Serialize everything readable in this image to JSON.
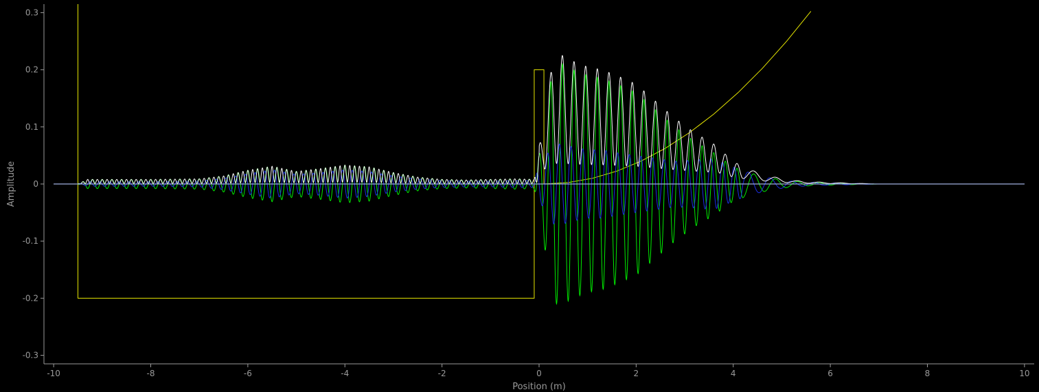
{
  "chart_data": {
    "type": "line",
    "title": "",
    "xlabel": "Position (m)",
    "ylabel": "Amplitude",
    "xlim": [
      -10.2,
      10.2
    ],
    "ylim": [
      -0.315,
      0.315
    ],
    "xticks": [
      -10,
      -8,
      -6,
      -4,
      -2,
      0,
      2,
      4,
      6,
      8,
      10
    ],
    "yticks": [
      -0.3,
      -0.2,
      -0.1,
      0,
      0.1,
      0.2,
      0.3
    ],
    "yticklabels": [
      "-0.3",
      "-0.2",
      "-0.1",
      "0",
      "0.1",
      "0.2",
      "0.3"
    ],
    "grid": false,
    "background": "#000000",
    "axis_color": "#9a9a9a",
    "series": [
      {
        "role": "potential",
        "color": "#e6e600",
        "segments": [
          {
            "x": [
              -9.5,
              -9.5,
              -9.5,
              -0.1,
              -0.1,
              0.1,
              0.1
            ],
            "y": [
              0.315,
              -0.2,
              -0.2,
              -0.2,
              0.2,
              0.2,
              0.0
            ]
          },
          {
            "x": [
              0.1,
              0.6,
              1.1,
              1.6,
              2.1,
              2.6,
              3.1,
              3.6,
              4.1,
              4.6,
              5.1,
              5.6
            ],
            "y": [
              0.0,
              0.0025,
              0.01,
              0.0225,
              0.04,
              0.0625,
              0.09,
              0.1225,
              0.16,
              0.2025,
              0.25,
              0.3025
            ]
          }
        ]
      },
      {
        "role": "real-part",
        "color": "#00ee00",
        "envelope": {
          "x": [
            -10.0,
            -9.5,
            -9.3,
            -8.0,
            -7.0,
            -6.5,
            -6.0,
            -5.5,
            -5.0,
            -4.5,
            -4.0,
            -3.5,
            -3.0,
            -2.5,
            -2.0,
            -1.5,
            -1.0,
            -0.5,
            -0.1,
            0.0,
            0.3,
            0.5,
            0.7,
            1.0,
            1.3,
            1.6,
            2.0,
            2.4,
            2.8,
            3.2,
            3.6,
            4.0,
            4.4,
            4.8,
            5.2,
            5.6,
            6.0,
            6.5,
            7.0,
            10.0
          ],
          "a": [
            0.0,
            0.0,
            0.008,
            0.008,
            0.009,
            0.014,
            0.024,
            0.031,
            0.022,
            0.027,
            0.033,
            0.03,
            0.02,
            0.012,
            0.008,
            0.007,
            0.008,
            0.009,
            0.008,
            0.05,
            0.21,
            0.21,
            0.2,
            0.19,
            0.185,
            0.175,
            0.16,
            0.13,
            0.1,
            0.075,
            0.055,
            0.03,
            0.018,
            0.01,
            0.005,
            0.003,
            0.002,
            0.001,
            0.0,
            0.0
          ]
        },
        "wavelength_left": 0.2,
        "wavelength_right": 0.24,
        "wavelength_far": 0.45
      },
      {
        "role": "imaginary-part",
        "color": "#1a2ee6",
        "envelope": {
          "x": [
            -10.0,
            -9.5,
            -9.3,
            -8.0,
            -7.0,
            -6.5,
            -6.0,
            -5.5,
            -5.0,
            -4.5,
            -4.0,
            -3.5,
            -3.0,
            -2.5,
            -2.0,
            -1.5,
            -1.0,
            -0.5,
            -0.1,
            0.0,
            0.3,
            0.5,
            0.7,
            1.0,
            1.3,
            1.6,
            2.0,
            2.4,
            2.8,
            3.2,
            3.6,
            4.0,
            4.4,
            4.8,
            5.2,
            5.6,
            6.0,
            6.5,
            7.0,
            10.0
          ],
          "a": [
            0.0,
            0.0,
            0.004,
            0.004,
            0.005,
            0.01,
            0.018,
            0.025,
            0.017,
            0.02,
            0.025,
            0.022,
            0.014,
            0.009,
            0.006,
            0.005,
            0.005,
            0.006,
            0.006,
            0.03,
            0.07,
            0.07,
            0.065,
            0.06,
            0.06,
            0.055,
            0.05,
            0.045,
            0.04,
            0.042,
            0.045,
            0.03,
            0.018,
            0.01,
            0.005,
            0.003,
            0.002,
            0.001,
            0.0,
            0.0
          ]
        },
        "wavelength_left": 0.2,
        "wavelength_right": 0.24,
        "wavelength_far": 0.45
      },
      {
        "role": "probability",
        "color": "#ffffff",
        "envelope": {
          "x": [
            -10.0,
            -9.5,
            -9.3,
            -8.0,
            -7.0,
            -6.5,
            -6.0,
            -5.5,
            -5.0,
            -4.5,
            -4.0,
            -3.5,
            -3.0,
            -2.5,
            -2.0,
            -1.5,
            -1.0,
            -0.5,
            -0.1,
            0.0,
            0.3,
            0.5,
            0.7,
            1.0,
            1.3,
            1.6,
            2.0,
            2.4,
            2.8,
            3.2,
            3.6,
            4.0,
            4.4,
            4.8,
            5.2,
            5.6,
            6.0,
            6.5,
            7.0,
            10.0
          ],
          "a": [
            0.0,
            0.0,
            0.008,
            0.008,
            0.009,
            0.014,
            0.024,
            0.031,
            0.022,
            0.027,
            0.033,
            0.03,
            0.02,
            0.012,
            0.008,
            0.007,
            0.008,
            0.009,
            0.008,
            0.05,
            0.21,
            0.21,
            0.2,
            0.19,
            0.185,
            0.175,
            0.16,
            0.13,
            0.1,
            0.075,
            0.055,
            0.03,
            0.018,
            0.01,
            0.005,
            0.003,
            0.002,
            0.001,
            0.0,
            0.0
          ]
        },
        "baseline": 0.0
      },
      {
        "role": "zero-line",
        "color": "#9fb0e0",
        "x": [
          -10,
          10
        ],
        "y": [
          0,
          0
        ]
      }
    ]
  }
}
